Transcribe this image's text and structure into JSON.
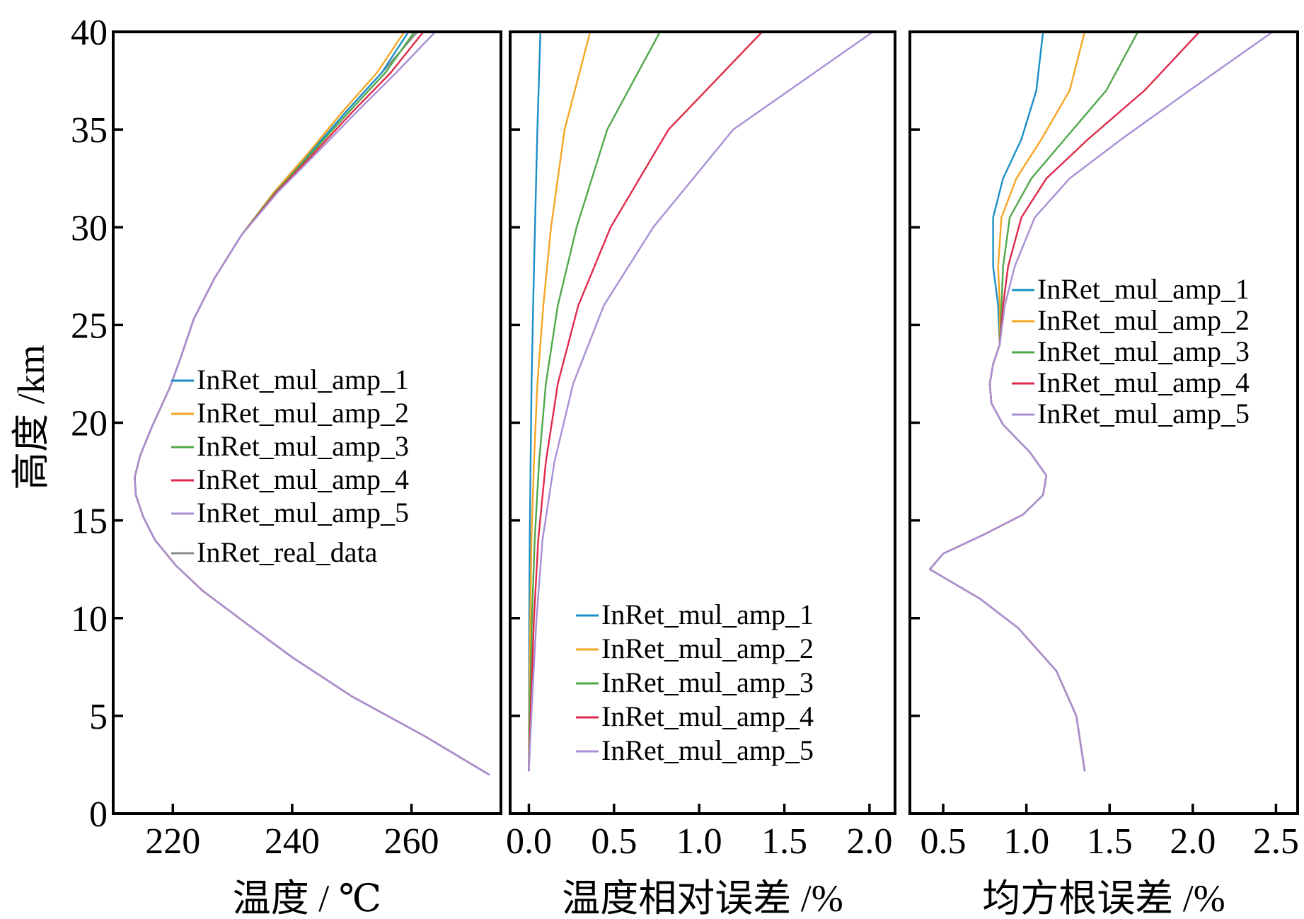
{
  "figure": {
    "ylabel": "高度 /km",
    "colors": {
      "InRet_mul_amp_1": "#1a8fc7",
      "InRet_mul_amp_2": "#f5a623",
      "InRet_mul_amp_3": "#4fa84a",
      "InRet_mul_amp_4": "#e0294a",
      "InRet_mul_amp_5": "#a98fd6",
      "InRet_real_data": "#8a8a8a"
    }
  },
  "chart_data": [
    {
      "type": "line",
      "xlabel": "温度 / ℃",
      "ylabel": "高度 /km",
      "xlim": [
        210,
        275
      ],
      "ylim": [
        0,
        40
      ],
      "xticks": [
        220,
        240,
        260
      ],
      "yticks": [
        0,
        5,
        10,
        15,
        20,
        25,
        30,
        35,
        40
      ],
      "legend_position": "center-right",
      "legend": [
        "InRet_mul_amp_1",
        "InRet_mul_amp_2",
        "InRet_mul_amp_3",
        "InRet_mul_amp_4",
        "InRet_mul_amp_5",
        "InRet_real_data"
      ],
      "series": [
        {
          "name": "InRet_real_data",
          "x": [
            273.0,
            262,
            250,
            240,
            232,
            225,
            220.5,
            217,
            215,
            213.8,
            213.6,
            214.5,
            216.5,
            219.5,
            221.5,
            223.5,
            227,
            231.5,
            237,
            243,
            249,
            255,
            261
          ],
          "y": [
            2,
            4,
            6,
            8,
            9.8,
            11.4,
            12.7,
            14.0,
            15.2,
            16.3,
            17.2,
            18.3,
            19.8,
            21.8,
            23.5,
            25.3,
            27.4,
            29.6,
            31.8,
            33.8,
            35.9,
            37.9,
            40
          ]
        },
        {
          "name": "InRet_mul_amp_1",
          "x": [
            273.0,
            262,
            250,
            240,
            232,
            225,
            220.5,
            217,
            215,
            213.8,
            213.6,
            214.5,
            216.5,
            219.5,
            221.5,
            223.5,
            227,
            231.5,
            237,
            243,
            249,
            255,
            259.5
          ],
          "y": [
            2,
            4,
            6,
            8,
            9.8,
            11.4,
            12.7,
            14.0,
            15.2,
            16.3,
            17.2,
            18.3,
            19.8,
            21.8,
            23.5,
            25.3,
            27.4,
            29.6,
            31.8,
            33.8,
            35.9,
            37.9,
            40
          ]
        },
        {
          "name": "InRet_mul_amp_2",
          "x": [
            273.0,
            262,
            250,
            240,
            232,
            225,
            220.5,
            217,
            215,
            213.8,
            213.6,
            214.5,
            216.5,
            219.5,
            221.5,
            223.5,
            227,
            231.5,
            237,
            242.7,
            248.4,
            254.2,
            258.8
          ],
          "y": [
            2,
            4,
            6,
            8,
            9.8,
            11.4,
            12.7,
            14.0,
            15.2,
            16.3,
            17.2,
            18.3,
            19.8,
            21.8,
            23.5,
            25.3,
            27.4,
            29.6,
            31.8,
            33.8,
            35.9,
            37.9,
            40
          ]
        },
        {
          "name": "InRet_mul_amp_3",
          "x": [
            273.0,
            262,
            250,
            240,
            232,
            225,
            220.5,
            217,
            215,
            213.8,
            213.6,
            214.5,
            216.5,
            219.5,
            221.5,
            223.5,
            227,
            231.5,
            237.2,
            243.3,
            249.5,
            255.6,
            260.5
          ],
          "y": [
            2,
            4,
            6,
            8,
            9.8,
            11.4,
            12.7,
            14.0,
            15.2,
            16.3,
            17.2,
            18.3,
            19.8,
            21.8,
            23.5,
            25.3,
            27.4,
            29.6,
            31.8,
            33.8,
            35.9,
            37.9,
            40
          ]
        },
        {
          "name": "InRet_mul_amp_4",
          "x": [
            273.0,
            262,
            250,
            240,
            232,
            225,
            220.5,
            217,
            215,
            213.8,
            213.6,
            214.5,
            216.5,
            219.5,
            221.5,
            223.5,
            227,
            231.5,
            237.4,
            243.7,
            250.1,
            256.5,
            262.0
          ],
          "y": [
            2,
            4,
            6,
            8,
            9.8,
            11.4,
            12.7,
            14.0,
            15.2,
            16.3,
            17.2,
            18.3,
            19.8,
            21.8,
            23.5,
            25.3,
            27.4,
            29.6,
            31.8,
            33.8,
            35.9,
            37.9,
            40
          ]
        },
        {
          "name": "InRet_mul_amp_5",
          "x": [
            273.0,
            262,
            250,
            240,
            232,
            225,
            220.5,
            217,
            215,
            213.8,
            213.6,
            214.5,
            216.5,
            219.5,
            221.5,
            223.5,
            227,
            231.5,
            237.6,
            244.1,
            250.8,
            257.4,
            264.0
          ],
          "y": [
            2,
            4,
            6,
            8,
            9.8,
            11.4,
            12.7,
            14.0,
            15.2,
            16.3,
            17.2,
            18.3,
            19.8,
            21.8,
            23.5,
            25.3,
            27.4,
            29.6,
            31.8,
            33.8,
            35.9,
            37.9,
            40
          ]
        }
      ]
    },
    {
      "type": "line",
      "xlabel": "温度相对误差 /%",
      "ylabel": "",
      "xlim": [
        -0.11,
        2.15
      ],
      "ylim": [
        0,
        40
      ],
      "xticks": [
        0.0,
        0.5,
        1.0,
        1.5,
        2.0
      ],
      "xticklabels": [
        "0.0",
        "0.5",
        "1.0",
        "1.5",
        "2.0"
      ],
      "yticks": [
        0,
        5,
        10,
        15,
        20,
        25,
        30,
        35,
        40
      ],
      "legend_position": "bottom-right",
      "legend": [
        "InRet_mul_amp_1",
        "InRet_mul_amp_2",
        "InRet_mul_amp_3",
        "InRet_mul_amp_4",
        "InRet_mul_amp_5"
      ],
      "series": [
        {
          "name": "InRet_mul_amp_1",
          "x": [
            0.0,
            0.001,
            0.002,
            0.005,
            0.01,
            0.016,
            0.025,
            0.036,
            0.05,
            0.068
          ],
          "y": [
            2.2,
            6,
            10,
            14,
            18,
            22,
            26,
            30,
            35,
            40
          ]
        },
        {
          "name": "InRet_mul_amp_2",
          "x": [
            0.0,
            0.004,
            0.008,
            0.015,
            0.03,
            0.05,
            0.085,
            0.13,
            0.21,
            0.36
          ],
          "y": [
            2.2,
            6,
            10,
            14,
            18,
            22,
            26,
            30,
            35,
            40
          ]
        },
        {
          "name": "InRet_mul_amp_3",
          "x": [
            0.0,
            0.008,
            0.018,
            0.034,
            0.06,
            0.1,
            0.17,
            0.28,
            0.46,
            0.77
          ],
          "y": [
            2.2,
            6,
            10,
            14,
            18,
            22,
            26,
            30,
            35,
            40
          ]
        },
        {
          "name": "InRet_mul_amp_4",
          "x": [
            0.0,
            0.014,
            0.03,
            0.055,
            0.1,
            0.17,
            0.29,
            0.48,
            0.82,
            1.37
          ],
          "y": [
            2.2,
            6,
            10,
            14,
            18,
            22,
            26,
            30,
            35,
            40
          ]
        },
        {
          "name": "InRet_mul_amp_5",
          "x": [
            0.0,
            0.02,
            0.045,
            0.08,
            0.15,
            0.26,
            0.44,
            0.73,
            1.2,
            2.02
          ],
          "y": [
            2.2,
            6,
            10,
            14,
            18,
            22,
            26,
            30,
            35,
            40
          ]
        }
      ]
    },
    {
      "type": "line",
      "xlabel": "均方根误差 /%",
      "ylabel": "",
      "xlim": [
        0.3,
        2.63
      ],
      "ylim": [
        0,
        40
      ],
      "xticks": [
        0.5,
        1.0,
        1.5,
        2.0,
        2.5
      ],
      "xticklabels": [
        "0.5",
        "1.0",
        "1.5",
        "2.0",
        "2.5"
      ],
      "yticks": [
        0,
        5,
        10,
        15,
        20,
        25,
        30,
        35,
        40
      ],
      "legend_position": "top-right",
      "legend": [
        "InRet_mul_amp_1",
        "InRet_mul_amp_2",
        "InRet_mul_amp_3",
        "InRet_mul_amp_4",
        "InRet_mul_amp_5"
      ],
      "series": [
        {
          "name": "InRet_mul_amp_1",
          "x": [
            1.35,
            1.3,
            1.18,
            0.95,
            0.72,
            0.52,
            0.42,
            0.5,
            0.75,
            0.98,
            1.1,
            1.12,
            1.02,
            0.86,
            0.79,
            0.78,
            0.8,
            0.84,
            0.83,
            0.8,
            0.8,
            0.86,
            0.97,
            1.06,
            1.1
          ],
          "y": [
            2.2,
            5,
            7.3,
            9.5,
            11.0,
            12.0,
            12.5,
            13.3,
            14.3,
            15.3,
            16.3,
            17.3,
            18.5,
            19.9,
            21.0,
            22.0,
            23.0,
            24.0,
            26.0,
            28.0,
            30.5,
            32.5,
            34.5,
            37.0,
            40
          ]
        },
        {
          "name": "InRet_mul_amp_2",
          "x": [
            1.35,
            1.3,
            1.18,
            0.95,
            0.72,
            0.52,
            0.42,
            0.5,
            0.75,
            0.98,
            1.1,
            1.12,
            1.02,
            0.86,
            0.79,
            0.78,
            0.8,
            0.84,
            0.84,
            0.83,
            0.85,
            0.94,
            1.09,
            1.26,
            1.35
          ],
          "y": [
            2.2,
            5,
            7.3,
            9.5,
            11.0,
            12.0,
            12.5,
            13.3,
            14.3,
            15.3,
            16.3,
            17.3,
            18.5,
            19.9,
            21.0,
            22.0,
            23.0,
            24.0,
            26.0,
            28.0,
            30.5,
            32.5,
            34.5,
            37.0,
            40
          ]
        },
        {
          "name": "InRet_mul_amp_3",
          "x": [
            1.35,
            1.3,
            1.18,
            0.95,
            0.72,
            0.52,
            0.42,
            0.5,
            0.75,
            0.98,
            1.1,
            1.12,
            1.02,
            0.86,
            0.79,
            0.78,
            0.8,
            0.84,
            0.85,
            0.86,
            0.9,
            1.03,
            1.23,
            1.48,
            1.67
          ],
          "y": [
            2.2,
            5,
            7.3,
            9.5,
            11.0,
            12.0,
            12.5,
            13.3,
            14.3,
            15.3,
            16.3,
            17.3,
            18.5,
            19.9,
            21.0,
            22.0,
            23.0,
            24.0,
            26.0,
            28.0,
            30.5,
            32.5,
            34.5,
            37.0,
            40
          ]
        },
        {
          "name": "InRet_mul_amp_4",
          "x": [
            1.35,
            1.3,
            1.18,
            0.95,
            0.72,
            0.52,
            0.42,
            0.5,
            0.75,
            0.98,
            1.1,
            1.12,
            1.02,
            0.86,
            0.79,
            0.78,
            0.8,
            0.84,
            0.86,
            0.89,
            0.97,
            1.12,
            1.37,
            1.71,
            2.04
          ],
          "y": [
            2.2,
            5,
            7.3,
            9.5,
            11.0,
            12.0,
            12.5,
            13.3,
            14.3,
            15.3,
            16.3,
            17.3,
            18.5,
            19.9,
            21.0,
            22.0,
            23.0,
            24.0,
            26.0,
            28.0,
            30.5,
            32.5,
            34.5,
            37.0,
            40
          ]
        },
        {
          "name": "InRet_mul_amp_5",
          "x": [
            1.35,
            1.3,
            1.18,
            0.95,
            0.72,
            0.52,
            0.42,
            0.5,
            0.75,
            0.98,
            1.1,
            1.12,
            1.02,
            0.86,
            0.79,
            0.78,
            0.8,
            0.84,
            0.87,
            0.93,
            1.05,
            1.26,
            1.57,
            1.98,
            2.48
          ],
          "y": [
            2.2,
            5,
            7.3,
            9.5,
            11.0,
            12.0,
            12.5,
            13.3,
            14.3,
            15.3,
            16.3,
            17.3,
            18.5,
            19.9,
            21.0,
            22.0,
            23.0,
            24.0,
            26.0,
            28.0,
            30.5,
            32.5,
            34.5,
            37.0,
            40
          ]
        }
      ]
    }
  ]
}
